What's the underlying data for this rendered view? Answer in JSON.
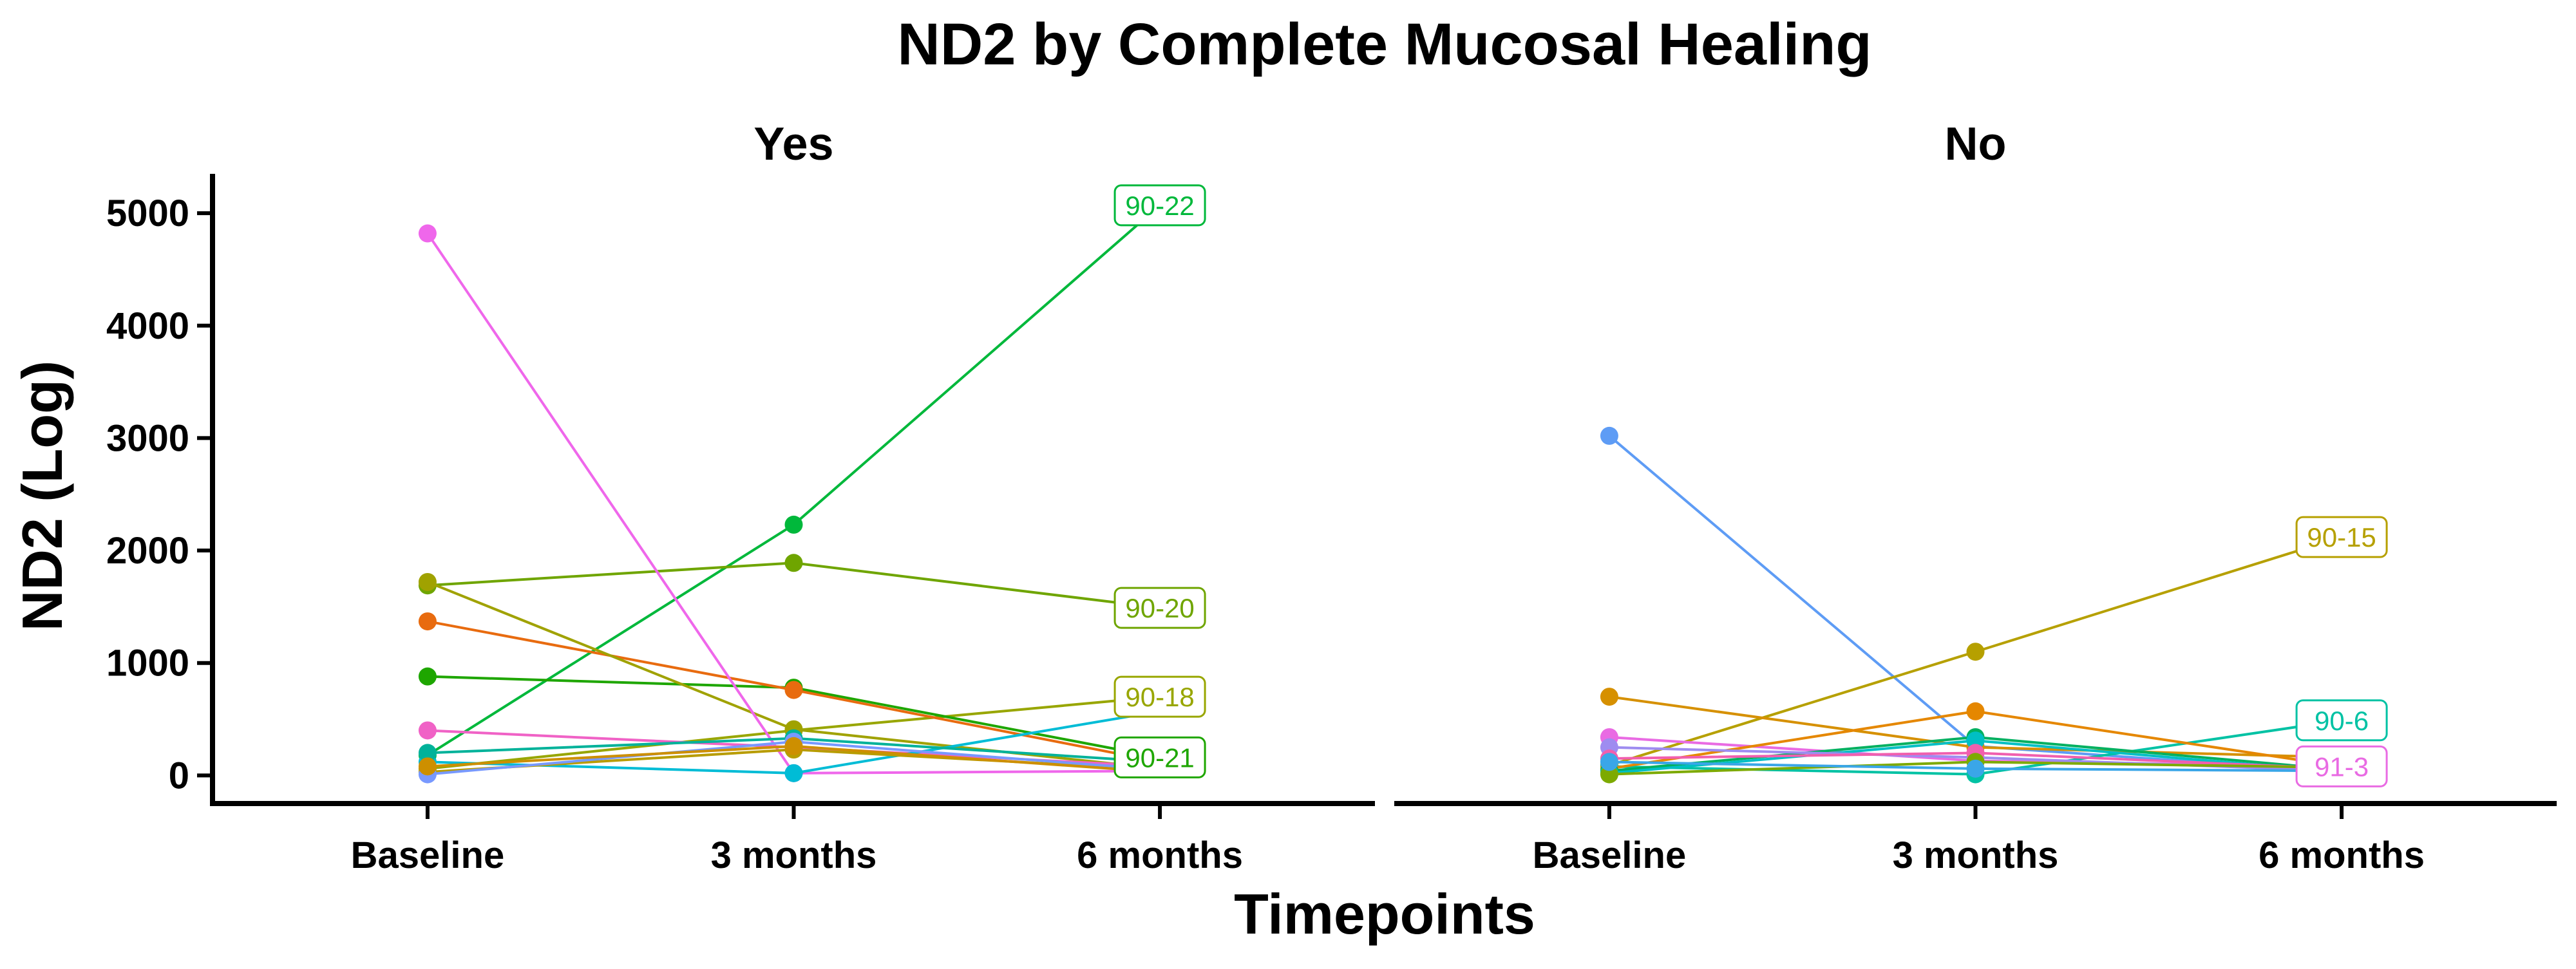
{
  "chart_data": {
    "type": "line",
    "title": "ND2 by Complete Mucosal Healing",
    "xlabel": "Timepoints",
    "ylabel": "ND2 (Log)",
    "categories": [
      "Baseline",
      "3 months",
      "6 months"
    ],
    "y_ticks": [
      0,
      1000,
      2000,
      3000,
      4000,
      5000
    ],
    "ylim": [
      -250,
      5350
    ],
    "grid": false,
    "legend": "none",
    "facets": [
      {
        "title": "Yes",
        "series": [
          {
            "name": "90-22",
            "color": "#00b83b",
            "values": [
              180,
              2230,
              5070
            ],
            "label_value": 5070
          },
          {
            "name": "90-20",
            "color": "#6fa500",
            "values": [
              1690,
              1890,
              1490
            ],
            "label_value": 1490
          },
          {
            "name": "90-18",
            "color": "#98a600",
            "values": [
              60,
              400,
              700
            ],
            "label_value": 700
          },
          {
            "name": "90-21",
            "color": "#1ea600",
            "values": [
              880,
              780,
              160
            ],
            "label_value": 160
          },
          {
            "color": "#e86b0f",
            "values": [
              1370,
              760,
              120
            ]
          },
          {
            "color": "#a0a200",
            "values": [
              1720,
              410,
              60
            ]
          },
          {
            "color": "#ef67eb",
            "values": [
              4820,
              20,
              40
            ]
          },
          {
            "color": "#f062c6",
            "values": [
              400,
              250,
              80
            ]
          },
          {
            "color": "#00bcd6",
            "values": [
              120,
              20,
              570
            ]
          },
          {
            "color": "#00b29a",
            "values": [
              200,
              330,
              120
            ]
          },
          {
            "color": "#b89c00",
            "values": [
              30,
              230,
              50
            ]
          },
          {
            "color": "#7899ff",
            "values": [
              10,
              300,
              50
            ]
          },
          {
            "color": "#cd8f00",
            "values": [
              80,
              260,
              30
            ]
          }
        ]
      },
      {
        "title": "No",
        "series": [
          {
            "color": "#5e9cf5",
            "values": [
              3020,
              260,
              30
            ]
          },
          {
            "name": "90-15",
            "color": "#b6a000",
            "values": [
              90,
              1100,
              2120
            ],
            "label_value": 2120
          },
          {
            "name": "90-6",
            "color": "#00c2a4",
            "values": [
              80,
              10,
              490
            ],
            "label_value": 490
          },
          {
            "name": "91-3",
            "color": "#e96be3",
            "values": [
              340,
              130,
              80
            ],
            "label_value": 80
          },
          {
            "color": "#d69000",
            "values": [
              700,
              250,
              160
            ]
          },
          {
            "color": "#e58700",
            "values": [
              60,
              570,
              80
            ]
          },
          {
            "color": "#00b060",
            "values": [
              40,
              340,
              50
            ]
          },
          {
            "color": "#00bfc4",
            "values": [
              20,
              310,
              30
            ]
          },
          {
            "color": "#9e8cf0",
            "values": [
              250,
              160,
              40
            ]
          },
          {
            "color": "#f15fae",
            "values": [
              150,
              200,
              60
            ]
          },
          {
            "color": "#7daa00",
            "values": [
              10,
              120,
              70
            ]
          },
          {
            "color": "#3aa6e8",
            "values": [
              120,
              60,
              40
            ]
          }
        ]
      }
    ]
  }
}
